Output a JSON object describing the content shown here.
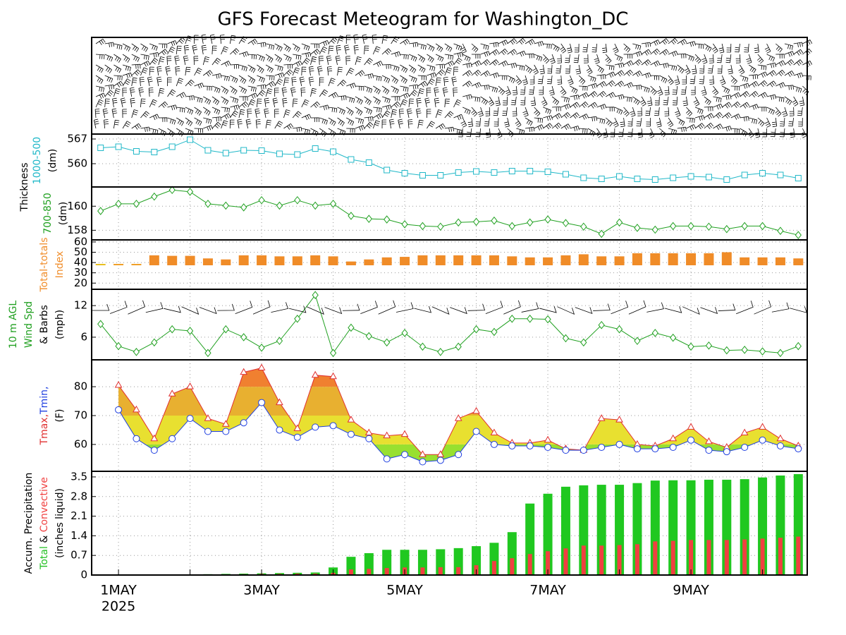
{
  "title": "GFS Forecast Meteogram for Washington_DC",
  "chart_data": [
    {
      "type": "line",
      "group_label": "Thickness",
      "ylabel": [
        [
          {
            "text": "1000-500",
            "color": "#20b8c8"
          }
        ],
        [
          {
            "text": "(dm)",
            "color": "#000000"
          }
        ]
      ],
      "ylim": [
        553.4,
        568.4
      ],
      "yticks": [
        560,
        567
      ],
      "series": [
        {
          "name": "1000-500",
          "color": "#20b8c8",
          "marker": "square",
          "values": [
            564.5,
            564.8,
            563.5,
            563.3,
            564.8,
            566.8,
            563.8,
            563.0,
            563.8,
            563.7,
            562.8,
            562.6,
            564.3,
            563.4,
            561.2,
            560.3,
            558.2,
            557.3,
            556.7,
            556.7,
            557.5,
            557.8,
            557.5,
            557.9,
            557.9,
            557.7,
            557.0,
            556.0,
            555.7,
            556.4,
            555.7,
            555.5,
            556.0,
            556.4,
            556.2,
            555.5,
            556.8,
            557.3,
            556.8,
            555.9
          ]
        }
      ]
    },
    {
      "type": "line",
      "ylabel": [
        [
          {
            "text": "700-850",
            "color": "#20a020"
          }
        ],
        [
          {
            "text": "(dm)",
            "color": "#000000"
          }
        ]
      ],
      "ylim": [
        157.2,
        161.6
      ],
      "yticks": [
        158,
        160
      ],
      "series": [
        {
          "name": "700-850",
          "color": "#20a020",
          "marker": "diamond",
          "values": [
            159.6,
            160.2,
            160.2,
            160.8,
            161.35,
            161.2,
            160.2,
            160.05,
            159.9,
            160.5,
            160.05,
            160.5,
            160.05,
            160.2,
            159.2,
            158.95,
            158.9,
            158.5,
            158.35,
            158.3,
            158.65,
            158.7,
            158.8,
            158.35,
            158.65,
            158.9,
            158.6,
            158.3,
            157.7,
            158.65,
            158.2,
            158.05,
            158.35,
            158.35,
            158.3,
            158.1,
            158.35,
            158.35,
            157.95,
            157.6
          ]
        }
      ]
    },
    {
      "type": "bar",
      "ylabel": [
        [
          {
            "text": "Total-totals",
            "color": "#f08c28"
          }
        ],
        [
          {
            "text": "Index",
            "color": "#f08c28"
          }
        ]
      ],
      "ylim": [
        14,
        62
      ],
      "yticks": [
        20,
        30,
        40,
        50,
        60
      ],
      "ytick_colors": [
        "#e8d020",
        "#e8b020",
        "#909090",
        "#f08c28",
        "#f08c28"
      ],
      "values": [
        37,
        38,
        38.5,
        47,
        46.5,
        46.5,
        44,
        43,
        47,
        47,
        46,
        46,
        47,
        46,
        41,
        43,
        45,
        45.5,
        47,
        47,
        47,
        47,
        47,
        46,
        45,
        45,
        47,
        48,
        46,
        46,
        49,
        49,
        49,
        49,
        49,
        50,
        45,
        45,
        45,
        44
      ],
      "colors": [
        "#e8c020",
        "#f0a028",
        "#f0a028",
        "#f08c28",
        "#f08c28",
        "#f08c28",
        "#f08c28",
        "#f08c28",
        "#f08c28",
        "#f08c28",
        "#f08c28",
        "#f08c28",
        "#f08c28",
        "#f08c28",
        "#f08c28",
        "#f08c28",
        "#f08c28",
        "#f08c28",
        "#f08c28",
        "#f08c28",
        "#f08c28",
        "#f08c28",
        "#f08c28",
        "#f08c28",
        "#f08c28",
        "#f08c28",
        "#f08c28",
        "#f08c28",
        "#f08c28",
        "#f08c28",
        "#f08c28",
        "#f08c28",
        "#f08c28",
        "#f08c28",
        "#f08c28",
        "#f08c28",
        "#f08c28",
        "#f08c28",
        "#f08c28",
        "#f08c28"
      ]
    },
    {
      "type": "line",
      "ylabel": [
        [
          {
            "text": "10 m AGL",
            "color": "#20a020"
          }
        ],
        [
          {
            "text": "Wind Spd",
            "color": "#20a020"
          }
        ],
        [
          {
            "text": "& Barbs",
            "color": "#000000"
          }
        ],
        [
          {
            "text": "(mph)",
            "color": "#000000"
          }
        ]
      ],
      "ylim": [
        1.7,
        15.1
      ],
      "yticks": [
        6,
        12
      ],
      "series": [
        {
          "name": "Wind Spd",
          "color": "#20a020",
          "marker": "diamond",
          "values": [
            8.5,
            4.3,
            3.2,
            5,
            7.5,
            7.2,
            3,
            7.5,
            6,
            4,
            5.3,
            9.5,
            14,
            3,
            7.8,
            6.2,
            5,
            6.8,
            4.2,
            3.2,
            4.2,
            7.5,
            7,
            9.5,
            9.5,
            9.4,
            5.8,
            5,
            8.3,
            7.5,
            5.3,
            6.8,
            5.9,
            4.2,
            4.4,
            3.5,
            3.6,
            3.3,
            3,
            4.3
          ]
        }
      ]
    },
    {
      "type": "range",
      "ylabel": [
        [
          {
            "text": "Tmax,",
            "color": "#e03030"
          },
          {
            "text": "Tmin,",
            "color": "#2040e0"
          }
        ],
        [
          {
            "text": "(F)",
            "color": "#000000"
          }
        ]
      ],
      "ylim": [
        50.7,
        89.3
      ],
      "yticks": [
        60,
        70,
        80
      ],
      "band_colors": [
        "#98e030",
        "#e8e030",
        "#e8b030",
        "#f08030"
      ],
      "series": [
        {
          "name": "Tmax",
          "color": "#e03030",
          "marker": "triangle",
          "values": [
            null,
            80.5,
            72,
            62,
            77.5,
            80,
            69,
            67,
            85,
            86.5,
            74.5,
            65.5,
            84,
            83.5,
            68.5,
            64,
            63,
            63.5,
            56.5,
            56.5,
            69,
            71.5,
            64,
            60.5,
            60.5,
            61.5,
            58.5,
            58,
            69,
            68.5,
            60,
            59.5,
            62,
            66,
            61,
            59,
            64,
            66,
            62,
            59.5
          ]
        },
        {
          "name": "Tmin",
          "color": "#2040e0",
          "marker": "circle",
          "values": [
            null,
            72,
            62,
            58,
            62,
            69,
            64.5,
            64.5,
            67.5,
            74.5,
            65,
            62.5,
            66,
            66.5,
            63.5,
            62,
            55,
            56.5,
            54,
            54.5,
            56.5,
            64.5,
            60,
            59.5,
            59.5,
            59,
            58,
            58,
            59,
            60,
            58.5,
            58.5,
            59,
            61.5,
            58,
            57.5,
            59,
            61.5,
            59.5,
            58.5
          ]
        }
      ]
    },
    {
      "type": "bar",
      "ylabel": [
        [
          {
            "text": "Accum. Precipitation",
            "color": "#000000"
          }
        ],
        [
          {
            "text": "Total",
            "color": "#20c020"
          },
          {
            "text": " & ",
            "color": "#000000"
          },
          {
            "text": "Convective",
            "color": "#f04040"
          }
        ],
        [
          {
            "text": "(inches liquid)",
            "color": "#000000"
          }
        ]
      ],
      "ylim": [
        0,
        3.7
      ],
      "yticks": [
        0,
        0.7,
        1.4,
        2.1,
        2.8,
        3.5
      ],
      "categories": [
        null,
        "1MAY",
        null,
        null,
        null,
        null,
        null,
        null,
        null,
        "3MAY",
        null,
        null,
        null,
        null,
        null,
        null,
        null,
        "5MAY",
        null,
        null,
        null,
        null,
        null,
        null,
        null,
        "7MAY",
        null,
        null,
        null,
        null,
        null,
        null,
        null,
        "9MAY",
        null,
        null,
        null,
        null,
        null,
        null
      ],
      "year_label": "2025",
      "series": [
        {
          "name": "Total",
          "color": "#20c820",
          "values": [
            0,
            0,
            0,
            0,
            0.02,
            0.02,
            0.03,
            0.04,
            0.05,
            0.06,
            0.07,
            0.08,
            0.09,
            0.27,
            0.65,
            0.78,
            0.9,
            0.9,
            0.9,
            0.92,
            0.96,
            1.03,
            1.15,
            1.53,
            2.55,
            2.9,
            3.15,
            3.2,
            3.22,
            3.22,
            3.28,
            3.37,
            3.38,
            3.38,
            3.4,
            3.4,
            3.42,
            3.48,
            3.55,
            3.6
          ]
        },
        {
          "name": "Convective",
          "color": "#f04040",
          "values": [
            0,
            0,
            0,
            0,
            0.01,
            0.01,
            0.02,
            0.02,
            0.03,
            0.04,
            0.04,
            0.05,
            0.05,
            0.08,
            0.2,
            0.22,
            0.25,
            0.27,
            0.27,
            0.28,
            0.28,
            0.35,
            0.5,
            0.6,
            0.75,
            0.85,
            0.95,
            1.05,
            1.05,
            1.07,
            1.1,
            1.2,
            1.22,
            1.25,
            1.25,
            1.25,
            1.27,
            1.3,
            1.33,
            1.37
          ]
        }
      ]
    }
  ]
}
